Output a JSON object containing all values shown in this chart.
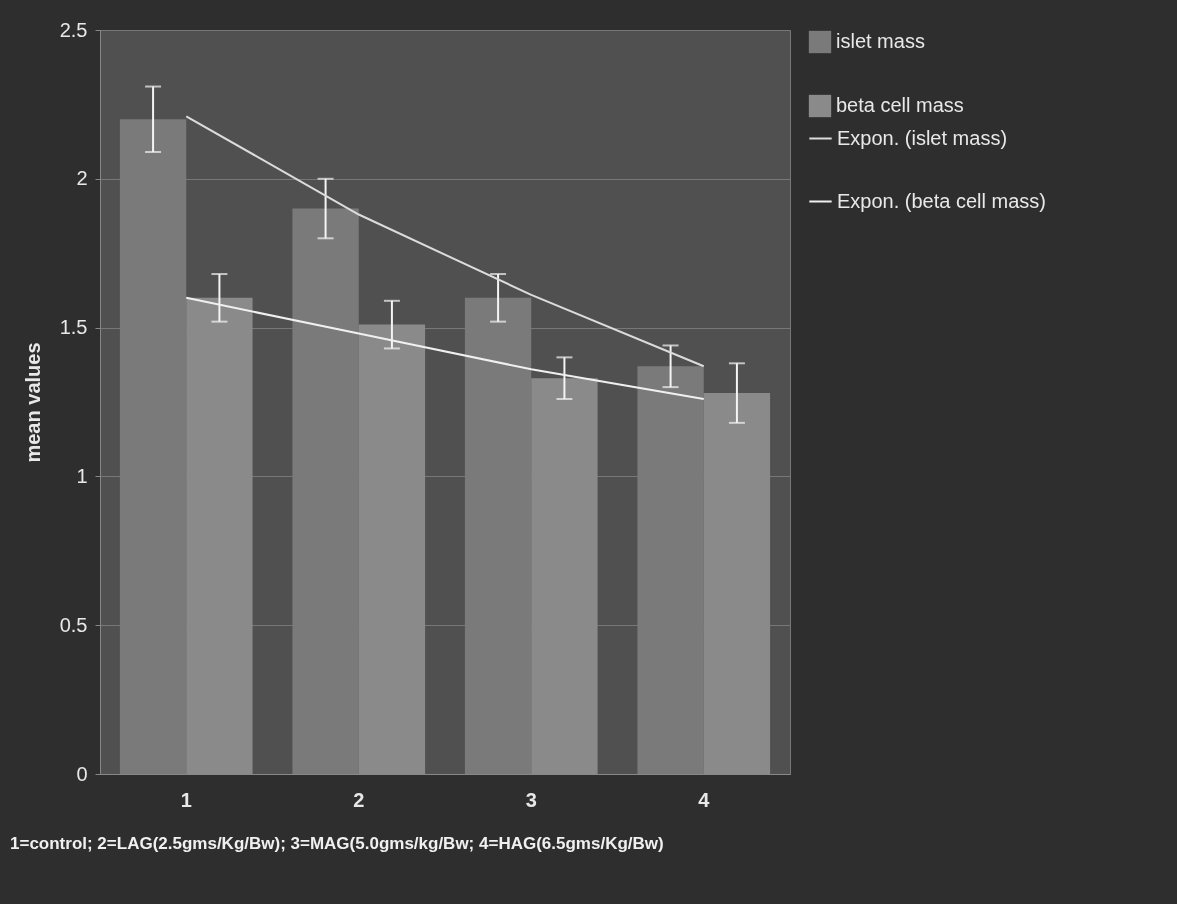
{
  "chart_data": {
    "type": "bar",
    "categories": [
      "1",
      "2",
      "3",
      "4"
    ],
    "ylabel": "mean values",
    "ylim": [
      0,
      2.5
    ],
    "yticks": [
      0,
      0.5,
      1,
      1.5,
      2,
      2.5
    ],
    "grid": "y",
    "legend": "right",
    "series": [
      {
        "name": "islet mass",
        "color": "#7a7a7a",
        "values": [
          2.2,
          1.9,
          1.6,
          1.37
        ],
        "errors": [
          0.11,
          0.1,
          0.08,
          0.07
        ]
      },
      {
        "name": "beta cell mass",
        "color": "#8a8a8a",
        "values": [
          1.6,
          1.51,
          1.33,
          1.28
        ],
        "errors": [
          0.08,
          0.08,
          0.07,
          0.1
        ]
      },
      {
        "name": "Expon. (islet mass)",
        "type": "line",
        "color": "#dcdcdc",
        "values": [
          2.21,
          1.88,
          1.61,
          1.37
        ]
      },
      {
        "name": "Expon. (beta cell mass)",
        "type": "line",
        "color": "#f0f0f0",
        "values": [
          1.6,
          1.48,
          1.36,
          1.26
        ]
      }
    ],
    "annotations": [
      "1=control; 2=LAG(2.5gms/Kg/Bw); 3=MAG(5.0gms/kg/Bw; 4=HAG(6.5gms/Kg/Bw)"
    ]
  }
}
